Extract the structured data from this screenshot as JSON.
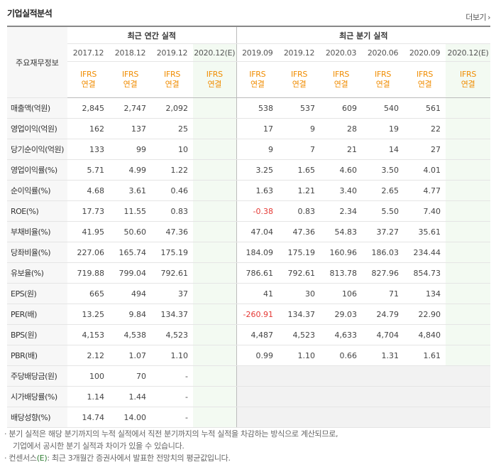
{
  "title": "기업실적분석",
  "more_label": "더보기",
  "more_icon": "chevron-right-icon",
  "header": {
    "main_label": "주요재무정보",
    "annual_label": "최근 연간 실적",
    "quarter_label": "최근 분기 실적",
    "annual_periods": [
      "2017.12",
      "2018.12",
      "2019.12",
      "2020.12(E)"
    ],
    "quarter_periods": [
      "2019.09",
      "2019.12",
      "2020.03",
      "2020.06",
      "2020.09",
      "2020.12(E)"
    ],
    "ifrs_top": "IFRS",
    "ifrs_bottom": "연결"
  },
  "rows": [
    {
      "label": "매출액(억원)",
      "annual": [
        "2,845",
        "2,747",
        "2,092",
        ""
      ],
      "quarter": [
        "538",
        "537",
        "609",
        "540",
        "561",
        ""
      ]
    },
    {
      "label": "영업이익(억원)",
      "annual": [
        "162",
        "137",
        "25",
        ""
      ],
      "quarter": [
        "17",
        "9",
        "28",
        "19",
        "22",
        ""
      ]
    },
    {
      "label": "당기순이익(억원)",
      "annual": [
        "133",
        "99",
        "10",
        ""
      ],
      "quarter": [
        "9",
        "7",
        "21",
        "14",
        "27",
        ""
      ]
    },
    {
      "label": "영업이익률(%)",
      "annual": [
        "5.71",
        "4.99",
        "1.22",
        ""
      ],
      "quarter": [
        "3.25",
        "1.65",
        "4.60",
        "3.50",
        "4.01",
        ""
      ]
    },
    {
      "label": "순이익률(%)",
      "annual": [
        "4.68",
        "3.61",
        "0.46",
        ""
      ],
      "quarter": [
        "1.63",
        "1.21",
        "3.40",
        "2.65",
        "4.77",
        ""
      ]
    },
    {
      "label": "ROE(%)",
      "annual": [
        "17.73",
        "11.55",
        "0.83",
        ""
      ],
      "quarter": [
        "-0.38",
        "0.83",
        "2.34",
        "5.50",
        "7.40",
        ""
      ]
    },
    {
      "label": "부채비율(%)",
      "annual": [
        "41.95",
        "50.60",
        "47.36",
        ""
      ],
      "quarter": [
        "47.04",
        "47.36",
        "54.83",
        "37.27",
        "35.61",
        ""
      ]
    },
    {
      "label": "당좌비율(%)",
      "annual": [
        "227.06",
        "165.74",
        "175.19",
        ""
      ],
      "quarter": [
        "184.09",
        "175.19",
        "160.96",
        "186.03",
        "234.44",
        ""
      ]
    },
    {
      "label": "유보율(%)",
      "annual": [
        "719.88",
        "799.04",
        "792.61",
        ""
      ],
      "quarter": [
        "786.61",
        "792.61",
        "813.78",
        "827.96",
        "854.73",
        ""
      ]
    },
    {
      "label": "EPS(원)",
      "annual": [
        "665",
        "494",
        "37",
        ""
      ],
      "quarter": [
        "41",
        "30",
        "106",
        "71",
        "134",
        ""
      ]
    },
    {
      "label": "PER(배)",
      "annual": [
        "13.25",
        "9.84",
        "134.37",
        ""
      ],
      "quarter": [
        "-260.91",
        "134.37",
        "29.03",
        "24.79",
        "22.90",
        ""
      ]
    },
    {
      "label": "BPS(원)",
      "annual": [
        "4,153",
        "4,538",
        "4,523",
        ""
      ],
      "quarter": [
        "4,487",
        "4,523",
        "4,633",
        "4,704",
        "4,840",
        ""
      ]
    },
    {
      "label": "PBR(배)",
      "annual": [
        "2.12",
        "1.07",
        "1.10",
        ""
      ],
      "quarter": [
        "0.99",
        "1.10",
        "0.66",
        "1.31",
        "1.61",
        ""
      ]
    },
    {
      "label": "주당배당금(원)",
      "annual": [
        "100",
        "70",
        "-",
        ""
      ],
      "quarter": null
    },
    {
      "label": "시가배당률(%)",
      "annual": [
        "1.14",
        "1.44",
        "-",
        ""
      ],
      "quarter": null
    },
    {
      "label": "배당성향(%)",
      "annual": [
        "14.74",
        "14.00",
        "-",
        ""
      ],
      "quarter": null
    }
  ],
  "group_breaks": [
    3,
    9,
    13
  ],
  "notes": {
    "line1": "· 분기 실적은 해당 분기까지의 누적 실적에서 직전 분기까지의 누적 실적을 차감하는 방식으로 계산되므로,",
    "line2": "기업에서 공시한 분기 실적과 차이가 있을 수 있습니다.",
    "line3_prefix": "· 컨센서스",
    "line3_em": "(E)",
    "line3_suffix": ": 최근 3개월간 증권사에서 발표한 전망치의 평균값입니다."
  },
  "colors": {
    "ifrs": "#f08c00",
    "negative": "#e53935",
    "estimate": "#2e7d32",
    "estimate_bg": "#f3faf2"
  }
}
